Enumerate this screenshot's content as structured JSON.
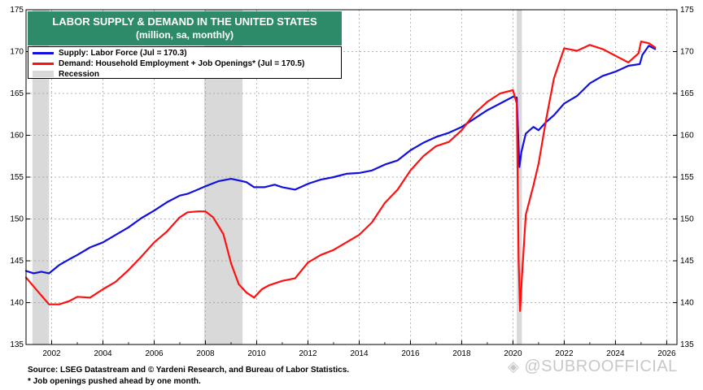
{
  "title": "LABOR  SUPPLY & DEMAND IN THE UNITED STATES",
  "subtitle": "(million, sa, monthly)",
  "legend": {
    "supply": "Supply: Labor Force (Jul = 170.3)",
    "demand": "Demand: Household Employment + Job Openings* (Jul = 170.5)",
    "recession": "Recession"
  },
  "source": "Source: LSEG Datastream and © Yardeni Research, and  Bureau of Labor Statistics.",
  "footnote": "* Job openings pushed ahead by one month.",
  "watermark": "@SUBROOFFICIAL",
  "colors": {
    "supply": "#1010e0",
    "demand": "#ff1010",
    "recession": "#d9d9d9",
    "title_bg": "#2e8b6a"
  },
  "chart_data": {
    "type": "line",
    "title": "LABOR  SUPPLY & DEMAND IN THE UNITED STATES",
    "subtitle": "(million, sa, monthly)",
    "xlim": [
      2001.0,
      2026.4
    ],
    "ylim": [
      135,
      175
    ],
    "x_ticks": [
      2002,
      2004,
      2006,
      2008,
      2010,
      2012,
      2014,
      2016,
      2018,
      2020,
      2022,
      2024,
      2026
    ],
    "y_ticks": [
      135,
      140,
      145,
      150,
      155,
      160,
      165,
      170,
      175
    ],
    "grid": true,
    "legend_position": "top-left",
    "recessions": [
      [
        2001.25,
        2001.9
      ],
      [
        2007.95,
        2009.45
      ],
      [
        2020.15,
        2020.35
      ]
    ],
    "series": [
      {
        "name": "Supply: Labor Force (Jul = 170.3)",
        "color": "#1010e0",
        "x": [
          2001.0,
          2001.3,
          2001.6,
          2001.9,
          2002.3,
          2002.7,
          2003.0,
          2003.5,
          2004.0,
          2004.5,
          2005.0,
          2005.5,
          2006.0,
          2006.5,
          2007.0,
          2007.3,
          2007.7,
          2008.0,
          2008.5,
          2009.0,
          2009.3,
          2009.6,
          2009.9,
          2010.3,
          2010.7,
          2011.0,
          2011.5,
          2012.0,
          2012.5,
          2013.0,
          2013.5,
          2014.0,
          2014.5,
          2015.0,
          2015.5,
          2016.0,
          2016.5,
          2017.0,
          2017.5,
          2018.0,
          2018.5,
          2019.0,
          2019.5,
          2020.0,
          2020.15,
          2020.25,
          2020.33,
          2020.5,
          2020.8,
          2021.0,
          2021.3,
          2021.6,
          2022.0,
          2022.5,
          2023.0,
          2023.5,
          2024.0,
          2024.5,
          2024.95,
          2025.05,
          2025.3,
          2025.55
        ],
        "values": [
          143.8,
          143.5,
          143.7,
          143.5,
          144.5,
          145.2,
          145.7,
          146.6,
          147.2,
          148.1,
          149.0,
          150.1,
          151.0,
          152.0,
          152.8,
          153.0,
          153.5,
          153.9,
          154.5,
          154.8,
          154.6,
          154.4,
          153.8,
          153.8,
          154.1,
          153.8,
          153.5,
          154.2,
          154.7,
          155.0,
          155.4,
          155.5,
          155.8,
          156.5,
          157.0,
          158.2,
          159.1,
          159.8,
          160.3,
          161.0,
          162.0,
          163.0,
          163.8,
          164.6,
          164.5,
          156.2,
          158.0,
          160.2,
          161.0,
          160.6,
          161.6,
          162.4,
          163.8,
          164.7,
          166.2,
          167.1,
          167.6,
          168.3,
          168.5,
          169.6,
          170.7,
          170.3
        ]
      },
      {
        "name": "Demand: Household Employment + Job Openings* (Jul = 170.5)",
        "color": "#ff1010",
        "x": [
          2001.0,
          2001.5,
          2001.9,
          2002.3,
          2002.7,
          2003.0,
          2003.5,
          2004.0,
          2004.5,
          2005.0,
          2005.5,
          2006.0,
          2006.5,
          2007.0,
          2007.3,
          2007.7,
          2008.0,
          2008.3,
          2008.7,
          2009.0,
          2009.3,
          2009.6,
          2009.9,
          2010.2,
          2010.5,
          2011.0,
          2011.5,
          2012.0,
          2012.5,
          2013.0,
          2013.5,
          2014.0,
          2014.5,
          2015.0,
          2015.5,
          2016.0,
          2016.5,
          2017.0,
          2017.5,
          2018.0,
          2018.5,
          2019.0,
          2019.5,
          2020.0,
          2020.15,
          2020.22,
          2020.28,
          2020.35,
          2020.5,
          2020.8,
          2021.0,
          2021.3,
          2021.6,
          2022.0,
          2022.5,
          2023.0,
          2023.5,
          2024.0,
          2024.5,
          2024.9,
          2025.0,
          2025.3,
          2025.55
        ],
        "values": [
          143.0,
          141.2,
          139.8,
          139.8,
          140.2,
          140.7,
          140.6,
          141.6,
          142.5,
          143.9,
          145.5,
          147.2,
          148.5,
          150.2,
          150.8,
          150.9,
          150.9,
          150.2,
          148.2,
          144.7,
          142.2,
          141.2,
          140.6,
          141.6,
          142.1,
          142.6,
          142.9,
          144.8,
          145.7,
          146.3,
          147.2,
          148.1,
          149.6,
          151.9,
          153.5,
          155.8,
          157.5,
          158.7,
          159.2,
          160.6,
          162.6,
          164.0,
          165.0,
          165.4,
          163.8,
          145.0,
          139.0,
          143.0,
          150.5,
          154.0,
          156.6,
          162.0,
          166.8,
          170.4,
          170.1,
          170.8,
          170.3,
          169.5,
          168.7,
          169.8,
          171.2,
          171.0,
          170.5
        ]
      }
    ]
  }
}
